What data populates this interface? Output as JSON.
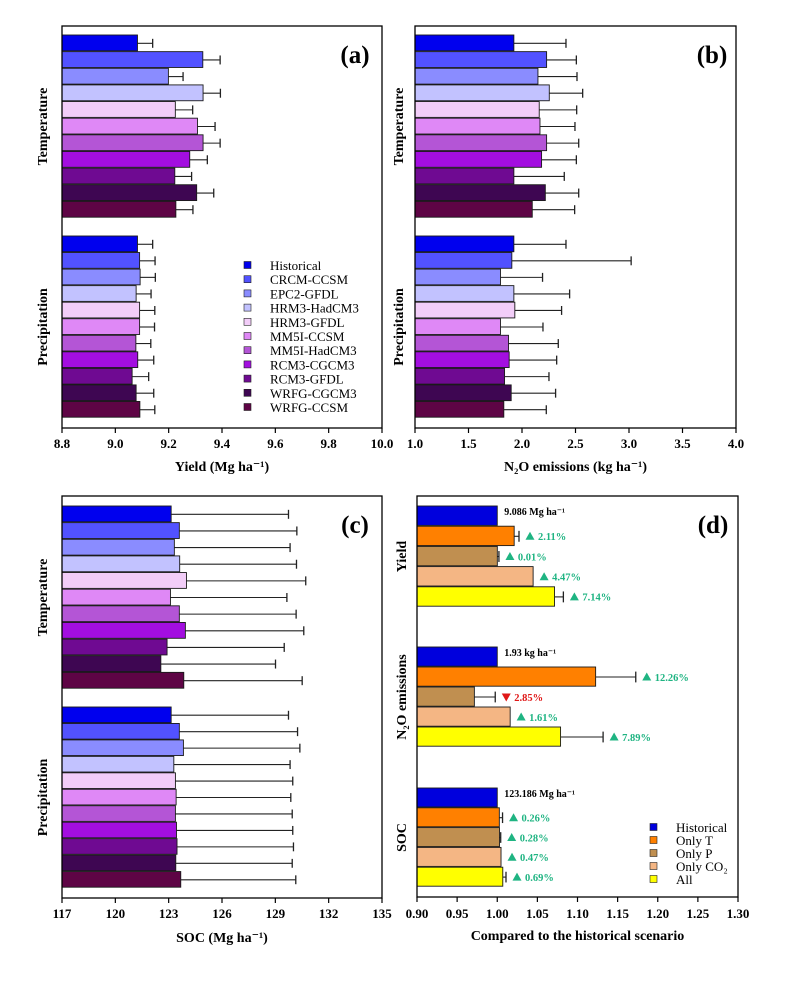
{
  "chart_data": [
    {
      "type": "bar",
      "orientation": "horizontal",
      "panel_label": "(a)",
      "xlabel": "Yield (Mg ha⁻¹)",
      "xlim": [
        8.8,
        10.0
      ],
      "xticks": [
        "8.8",
        "9.0",
        "9.2",
        "9.4",
        "9.6",
        "9.8",
        "10.0"
      ],
      "series_names": [
        "Historical",
        "CRCM-CCSM",
        "EPC2-GFDL",
        "HRM3-HadCM3",
        "HRM3-GFDL",
        "MM5I-CCSM",
        "MM5I-HadCM3",
        "RCM3-CGCM3",
        "RCM3-GFDL",
        "WRFG-CGCM3",
        "WRFG-CCSM"
      ],
      "colors": [
        "#0000ee",
        "#5252ff",
        "#8a8cff",
        "#c2c2ff",
        "#f2cdf8",
        "#df88f6",
        "#b455d6",
        "#a30ee0",
        "#6f0a92",
        "#3e0652",
        "#5e0445"
      ],
      "legend": "center-right",
      "groups": [
        {
          "name": "Temperature",
          "values": [
            9.083,
            9.328,
            9.199,
            9.329,
            9.225,
            9.308,
            9.329,
            9.279,
            9.223,
            9.305,
            9.227
          ],
          "errors": [
            0.057,
            0.065,
            0.055,
            0.065,
            0.065,
            0.066,
            0.064,
            0.066,
            0.063,
            0.064,
            0.064
          ]
        },
        {
          "name": "Precipitation",
          "values": [
            9.083,
            9.091,
            9.093,
            9.078,
            9.091,
            9.091,
            9.077,
            9.084,
            9.063,
            9.078,
            9.092
          ],
          "errors": [
            0.057,
            0.058,
            0.057,
            0.056,
            0.057,
            0.056,
            0.056,
            0.06,
            0.062,
            0.066,
            0.056
          ]
        }
      ]
    },
    {
      "type": "bar",
      "orientation": "horizontal",
      "panel_label": "(b)",
      "xlabel": "N₂O emissions (kg ha⁻¹)",
      "xlim": [
        1.0,
        4.0
      ],
      "xticks": [
        "1.0",
        "1.5",
        "2.0",
        "2.5",
        "3.0",
        "3.5",
        "4.0"
      ],
      "groups": [
        {
          "name": "Temperature",
          "values": [
            1.924,
            2.23,
            2.149,
            2.255,
            2.161,
            2.168,
            2.23,
            2.183,
            1.924,
            2.218,
            2.096
          ],
          "errors": [
            0.487,
            0.278,
            0.365,
            0.312,
            0.35,
            0.327,
            0.3,
            0.325,
            0.471,
            0.312,
            0.396
          ]
        },
        {
          "name": "Precipitation",
          "values": [
            1.924,
            1.905,
            1.799,
            1.924,
            1.933,
            1.799,
            1.874,
            1.88,
            1.837,
            1.899,
            1.83
          ],
          "errors": [
            0.487,
            1.115,
            0.393,
            0.521,
            0.437,
            0.397,
            0.465,
            0.444,
            0.415,
            0.415,
            0.397
          ]
        }
      ]
    },
    {
      "type": "bar",
      "orientation": "horizontal",
      "panel_label": "(c)",
      "xlabel": "SOC (Mg ha⁻¹)",
      "xlim": [
        117,
        135
      ],
      "xticks": [
        "117",
        "120",
        "123",
        "126",
        "129",
        "132",
        "135"
      ],
      "groups": [
        {
          "name": "Temperature",
          "values": [
            123.14,
            123.6,
            123.32,
            123.62,
            124.0,
            123.1,
            123.6,
            123.94,
            122.91,
            122.56,
            123.85
          ],
          "errors": [
            6.6,
            6.61,
            6.51,
            6.57,
            6.71,
            6.55,
            6.57,
            6.66,
            6.59,
            6.45,
            6.66
          ]
        },
        {
          "name": "Precipitation",
          "values": [
            123.14,
            123.6,
            123.83,
            123.29,
            123.38,
            123.42,
            123.38,
            123.44,
            123.47,
            123.4,
            123.68
          ],
          "errors": [
            6.6,
            6.65,
            6.55,
            6.54,
            6.6,
            6.45,
            6.57,
            6.54,
            6.55,
            6.55,
            6.47
          ]
        }
      ]
    },
    {
      "type": "bar",
      "orientation": "horizontal",
      "panel_label": "(d)",
      "xlabel": "Compared to the historical scenario",
      "xlim": [
        0.9,
        1.3
      ],
      "xticks": [
        "0.90",
        "0.95",
        "1.00",
        "1.05",
        "1.10",
        "1.15",
        "1.20",
        "1.25",
        "1.30"
      ],
      "series_names": [
        "Historical",
        "Only T",
        "Only P",
        "Only CO₂",
        "All"
      ],
      "colors": [
        "#0000dd",
        "#ff8000",
        "#c08f50",
        "#f4b684",
        "#ffff00"
      ],
      "legend": "bottom-right",
      "change_colors": {
        "increase": "#1fb482",
        "decrease": "#e01818"
      },
      "groups": [
        {
          "name": "Yield",
          "baseline_label": "9.086 Mg ha⁻¹",
          "values": [
            1.0,
            1.0211,
            1.0001,
            1.0447,
            1.0714
          ],
          "errors": [
            null,
            0.006,
            0.002,
            null,
            0.011
          ],
          "changes": [
            null,
            {
              "dir": "up",
              "label": "2.11%"
            },
            {
              "dir": "up",
              "label": "0.01%"
            },
            {
              "dir": "up",
              "label": "4.47%"
            },
            {
              "dir": "up",
              "label": "7.14%"
            }
          ]
        },
        {
          "name": "N₂O emissions",
          "baseline_label": "1.93 kg ha⁻¹",
          "values": [
            1.0,
            1.1226,
            0.9715,
            1.0161,
            1.0789
          ],
          "errors": [
            null,
            0.05,
            0.026,
            null,
            0.053
          ],
          "changes": [
            null,
            {
              "dir": "up",
              "label": "12.26%"
            },
            {
              "dir": "down",
              "label": "2.85%"
            },
            {
              "dir": "up",
              "label": "1.61%"
            },
            {
              "dir": "up",
              "label": "7.89%"
            }
          ]
        },
        {
          "name": "SOC",
          "baseline_label": "123.186 Mg ha⁻¹",
          "values": [
            1.0,
            1.0026,
            1.0028,
            1.0047,
            1.0069
          ],
          "errors": [
            null,
            0.004,
            0.0015,
            null,
            0.004
          ],
          "changes": [
            null,
            {
              "dir": "up",
              "label": "0.26%"
            },
            {
              "dir": "up",
              "label": "0.28%"
            },
            {
              "dir": "up",
              "label": "0.47%"
            },
            {
              "dir": "up",
              "label": "0.69%"
            }
          ]
        }
      ]
    }
  ]
}
